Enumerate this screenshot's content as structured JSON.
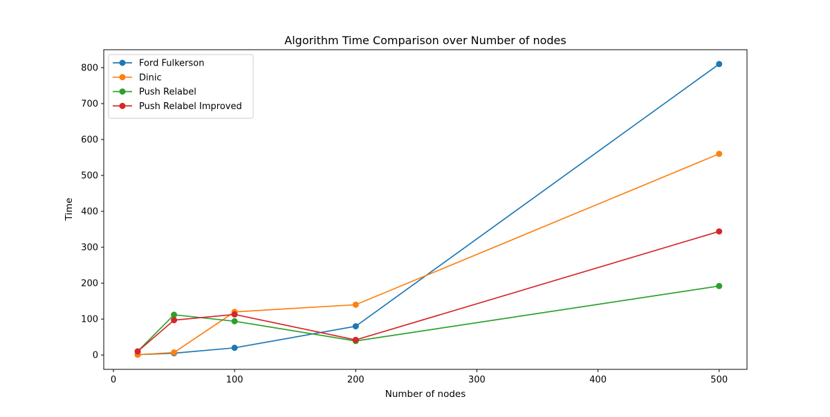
{
  "chart_data": {
    "type": "line",
    "title": "Algorithm Time Comparison over Number of nodes",
    "xlabel": "Number of nodes",
    "ylabel": "Time",
    "xlim": [
      -8,
      523
    ],
    "ylim": [
      -40,
      850
    ],
    "xticks": [
      0,
      100,
      200,
      300,
      400,
      500
    ],
    "yticks": [
      0,
      100,
      200,
      300,
      400,
      500,
      600,
      700,
      800
    ],
    "grid": false,
    "legend_position": "upper-left",
    "x": [
      20,
      50,
      100,
      200,
      500
    ],
    "series": [
      {
        "name": "Ford Fulkerson",
        "color": "#1f77b4",
        "values": [
          1,
          5,
          20,
          80,
          810
        ]
      },
      {
        "name": "Dinic",
        "color": "#ff7f0e",
        "values": [
          1,
          7,
          120,
          140,
          560
        ]
      },
      {
        "name": "Push Relabel",
        "color": "#2ca02c",
        "values": [
          10,
          112,
          94,
          39,
          192
        ]
      },
      {
        "name": "Push Relabel Improved",
        "color": "#d62728",
        "values": [
          10,
          97,
          113,
          42,
          344
        ]
      }
    ]
  }
}
